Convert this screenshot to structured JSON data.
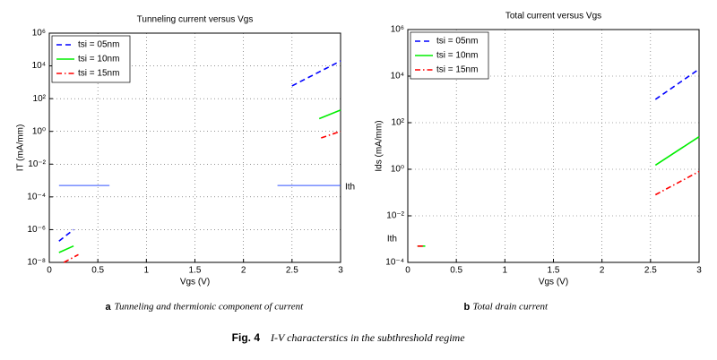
{
  "chart_data": [
    {
      "type": "line",
      "title": "Tunneling current versus Vgs",
      "x_label": "Vgs (V)",
      "y_label": "IT (mA/mm)",
      "yscale": "log",
      "grid": true,
      "legend": "upper left",
      "caption_label": "a",
      "caption": "Tunneling and thermionic component of current",
      "xlim": [
        0,
        3
      ],
      "xticks": [
        0,
        0.5,
        1,
        1.5,
        2,
        2.5,
        3
      ],
      "ylim": [
        1e-08,
        1000000.0
      ],
      "yticks": [
        {
          "value": 1e-08,
          "label": "10⁻⁸"
        },
        {
          "value": 1e-06,
          "label": "10⁻⁶"
        },
        {
          "value": 0.0001,
          "label": "10⁻⁴"
        },
        {
          "value": 0.01,
          "label": "10⁻²"
        },
        {
          "value": 1,
          "label": "10⁰"
        },
        {
          "value": 100,
          "label": "10²"
        },
        {
          "value": 10000,
          "label": "10⁴"
        },
        {
          "value": 1000000,
          "label": "10⁶"
        }
      ],
      "series": [
        {
          "name": "tsi = 05nm",
          "color": "#0000ff",
          "dash": "dashed",
          "x": [
            0.1,
            0.25,
            null,
            2.5,
            3
          ],
          "values": [
            2e-07,
            1e-06,
            null,
            600,
            20000
          ]
        },
        {
          "name": "tsi = 10nm",
          "color": "#00ee00",
          "dash": "solid",
          "x": [
            0.1,
            0.25,
            null,
            2.78,
            3
          ],
          "values": [
            4e-08,
            1e-07,
            null,
            6,
            20
          ]
        },
        {
          "name": "tsi = 15nm",
          "color": "#ff0000",
          "dash": "dashdot",
          "x": [
            0.15,
            0.3,
            null,
            2.8,
            3
          ],
          "values": [
            1e-08,
            3e-08,
            null,
            0.4,
            1
          ]
        }
      ],
      "threshold": {
        "label": "Ith",
        "value": 0.0005,
        "color": "#3355ff",
        "segments": [
          [
            0.1,
            0.62
          ],
          [
            2.35,
            3
          ]
        ]
      }
    },
    {
      "type": "line",
      "title": "Total current versus Vgs",
      "x_label": "Vgs (V)",
      "y_label": "Ids (mA/mm)",
      "yscale": "log",
      "grid": true,
      "legend": "upper left",
      "caption_label": "b",
      "caption": "Total drain current",
      "xlim": [
        0,
        3
      ],
      "xticks": [
        0,
        0.5,
        1,
        1.5,
        2,
        2.5,
        3
      ],
      "ylim": [
        0.0001,
        1000000
      ],
      "yticks": [
        {
          "value": 0.0001,
          "label": "10⁻⁴"
        },
        {
          "value": 0.01,
          "label": "10⁻²"
        },
        {
          "value": 1,
          "label": "10⁰"
        },
        {
          "value": 100,
          "label": "10²"
        },
        {
          "value": 10000,
          "label": "10⁴"
        },
        {
          "value": 1000000,
          "label": "10⁶"
        }
      ],
      "series": [
        {
          "name": "tsi = 05nm",
          "color": "#0000ff",
          "dash": "dashed",
          "x": [
            2.55,
            3
          ],
          "values": [
            1000,
            20000
          ]
        },
        {
          "name": "tsi = 10nm",
          "color": "#00ee00",
          "dash": "solid",
          "x": [
            0.1,
            0.18,
            null,
            2.55,
            3
          ],
          "values": [
            0.0005,
            0.0005,
            null,
            1.5,
            25
          ]
        },
        {
          "name": "tsi = 15nm",
          "color": "#ff0000",
          "dash": "dashdot",
          "x": [
            0.1,
            0.18,
            null,
            2.55,
            3
          ],
          "values": [
            0.0005,
            0.0005,
            null,
            0.08,
            0.8
          ]
        }
      ],
      "threshold": {
        "label": "Ith",
        "value": 0.0005
      }
    }
  ],
  "figure": {
    "label": "Fig. 4",
    "caption": "I-V characterstics in the subthreshold regime"
  }
}
